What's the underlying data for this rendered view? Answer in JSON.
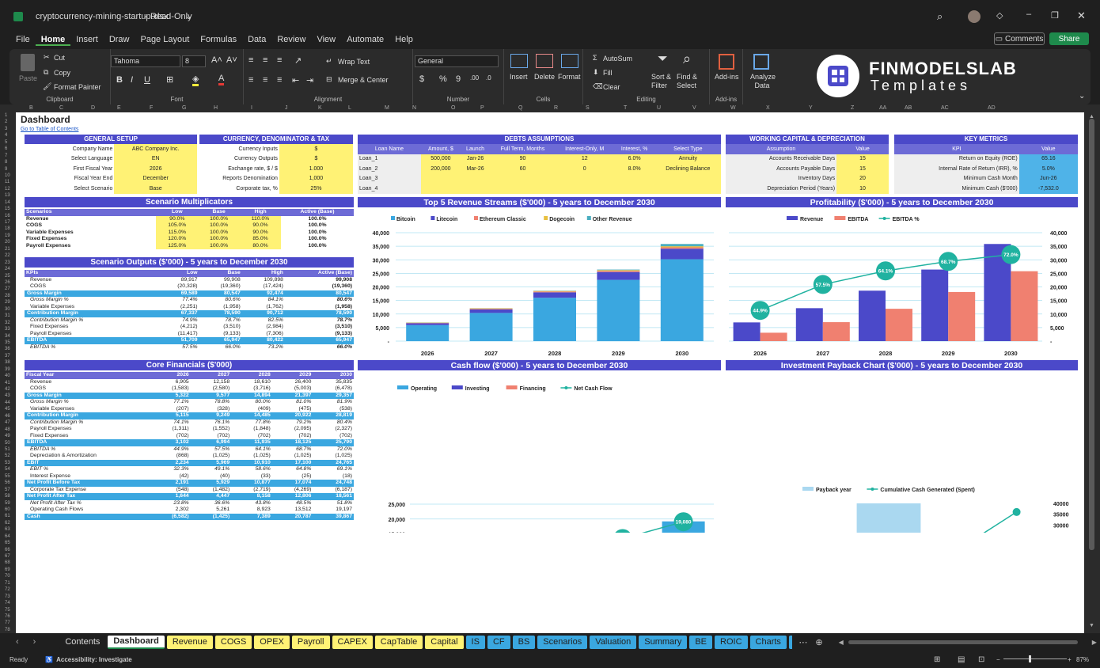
{
  "window": {
    "file_name": "cryptocurrency-mining-startup.xlsx",
    "mode": "Read-Only"
  },
  "menu": [
    "File",
    "Home",
    "Insert",
    "Draw",
    "Page Layout",
    "Formulas",
    "Data",
    "Review",
    "View",
    "Automate",
    "Help"
  ],
  "top_buttons": {
    "comments": "Comments",
    "share": "Share"
  },
  "ribbon": {
    "paste": "Paste",
    "cut": "Cut",
    "copy": "Copy",
    "format_painter": "Format Painter",
    "clipboard": "Clipboard",
    "font_name": "Tahoma",
    "font_size": "8",
    "font": "Font",
    "wrap_text": "Wrap Text",
    "merge_center": "Merge & Center",
    "alignment": "Alignment",
    "number_format": "General",
    "number": "Number",
    "insert": "Insert",
    "delete": "Delete",
    "format": "Format",
    "cells": "Cells",
    "autosum": "AutoSum",
    "fill": "Fill",
    "clear": "Clear",
    "sort_filter": "Sort & Filter",
    "find_select": "Find & Select",
    "editing": "Editing",
    "addins": "Add-ins",
    "addins_group": "Add-ins",
    "analyze": "Analyze Data",
    "brand_main": "FINMODELSLAB",
    "brand_sub": "Templates"
  },
  "columns": [
    "B",
    "C",
    "D",
    "E",
    "F",
    "G",
    "H",
    "I",
    "J",
    "K",
    "L",
    "M",
    "N",
    "O",
    "P",
    "Q",
    "R",
    "S",
    "T",
    "U",
    "V",
    "W",
    "X",
    "Y",
    "Z",
    "AA",
    "AB",
    "AC",
    "AD"
  ],
  "dashboard": {
    "title": "Dashboard",
    "toc_link": "Go to Table of Contents"
  },
  "general_setup": {
    "header": "GENERAL SETUP",
    "rows": [
      [
        "Company Name",
        "ABC Company Inc."
      ],
      [
        "Select Language",
        "EN"
      ],
      [
        "First Fiscal Year",
        "2026"
      ],
      [
        "Fiscal Year End",
        "December"
      ],
      [
        "Select Scenario",
        "Base"
      ]
    ]
  },
  "currency": {
    "header": "CURRENCY, DENOMINATOR & TAX",
    "rows": [
      [
        "Currency Inputs",
        "$"
      ],
      [
        "Currency Outputs",
        "$"
      ],
      [
        "Exchange rate, $ / $",
        "1.000"
      ],
      [
        "Reports Denomination",
        "1,000"
      ],
      [
        "Corporate tax, %",
        "25%"
      ]
    ]
  },
  "debts": {
    "header": "DEBTS ASSUMPTIONS",
    "cols": [
      "Loan Name",
      "Amount, $",
      "Launch",
      "Full Term, Months",
      "Interest-Only, M",
      "Interest, %",
      "Select Type"
    ],
    "rows": [
      [
        "Loan_1",
        "500,000",
        "Jan-26",
        "90",
        "12",
        "6.0%",
        "Annuity"
      ],
      [
        "Loan_2",
        "200,000",
        "Mar-26",
        "60",
        "0",
        "8.0%",
        "Declining Balance"
      ],
      [
        "Loan_3",
        "",
        "",
        "",
        "",
        "",
        ""
      ],
      [
        "Loan_4",
        "",
        "",
        "",
        "",
        "",
        ""
      ]
    ]
  },
  "working_capital": {
    "header": "WORKING CAPITAL & DEPRECIATION",
    "cols": [
      "Assumption",
      "Value"
    ],
    "rows": [
      [
        "Accounts Receivable Days",
        "15"
      ],
      [
        "Accounts Payable Days",
        "15"
      ],
      [
        "Inventory Days",
        "20"
      ],
      [
        "Depreciation Period (Years)",
        "10"
      ]
    ]
  },
  "key_metrics": {
    "header": "KEY METRICS",
    "cols": [
      "KPI",
      "Value"
    ],
    "rows": [
      [
        "Return on Equity (ROE)",
        "65.16"
      ],
      [
        "Internal Rate of Return (IRR), %",
        "5.0%"
      ],
      [
        "Minimum Cash Month",
        "Jun-26"
      ],
      [
        "Minimum Cash ($'000)",
        "-7,532.0"
      ]
    ]
  },
  "scenario_mult": {
    "header": "Scenario Multiplicators",
    "cols": [
      "Scenarios",
      "Low",
      "Base",
      "High",
      "Active (Base)"
    ],
    "rows": [
      [
        "Revenue",
        "90.0%",
        "100.0%",
        "110.0%",
        "100.0%"
      ],
      [
        "COGS",
        "105.0%",
        "100.0%",
        "90.0%",
        "100.0%"
      ],
      [
        "Variable Expenses",
        "115.0%",
        "100.0%",
        "90.0%",
        "100.0%"
      ],
      [
        "Fixed Expenses",
        "120.0%",
        "100.0%",
        "85.0%",
        "100.0%"
      ],
      [
        "Payroll Expenses",
        "125.0%",
        "100.0%",
        "80.0%",
        "100.0%"
      ]
    ]
  },
  "scenario_out": {
    "header": "Scenario Outputs ($'000) - 5 years to December 2030",
    "cols": [
      "KPIs",
      "Low",
      "Base",
      "High",
      "Active (Base)"
    ],
    "rows": [
      [
        "Revenue",
        "89,917",
        "99,908",
        "109,898",
        "99,908",
        "n"
      ],
      [
        "COGS",
        "(20,328)",
        "(19,360)",
        "(17,424)",
        "(19,360)",
        "n"
      ],
      [
        "Gross Margin",
        "69,589",
        "80,547",
        "92,474",
        "80,547",
        "h"
      ],
      [
        "Gross Margin %",
        "77.4%",
        "80.6%",
        "84.1%",
        "80.6%",
        "i"
      ],
      [
        "Variable Expenses",
        "(2,251)",
        "(1,958)",
        "(1,762)",
        "(1,958)",
        "n"
      ],
      [
        "Contribution Margin",
        "67,337",
        "78,590",
        "90,712",
        "78,590",
        "h"
      ],
      [
        "Contribution Margin %",
        "74.9%",
        "78.7%",
        "82.5%",
        "78.7%",
        "i"
      ],
      [
        "Fixed Expenses",
        "(4,212)",
        "(3,510)",
        "(2,984)",
        "(3,510)",
        "n"
      ],
      [
        "Payroll Expenses",
        "(11,417)",
        "(9,133)",
        "(7,306)",
        "(9,133)",
        "n"
      ],
      [
        "EBITDA",
        "51,709",
        "65,947",
        "80,422",
        "65,947",
        "h"
      ],
      [
        "EBITDA %",
        "57.5%",
        "66.0%",
        "73.2%",
        "66.0%",
        "i"
      ]
    ]
  },
  "core": {
    "header": "Core Financials ($'000)",
    "cols": [
      "Fiscal Year",
      "2026",
      "2027",
      "2028",
      "2029",
      "2030"
    ],
    "rows": [
      [
        "Revenue",
        "6,905",
        "12,158",
        "18,610",
        "26,400",
        "35,835",
        "n"
      ],
      [
        "COGS",
        "(1,583)",
        "(2,580)",
        "(3,716)",
        "(5,003)",
        "(6,478)",
        "n"
      ],
      [
        "Gross Margin",
        "5,322",
        "9,577",
        "14,894",
        "21,397",
        "29,357",
        "h"
      ],
      [
        "Gross Margin %",
        "77.1%",
        "78.8%",
        "80.0%",
        "81.0%",
        "81.9%",
        "i"
      ],
      [
        "Variable Expenses",
        "(207)",
        "(328)",
        "(409)",
        "(475)",
        "(538)",
        "n"
      ],
      [
        "Contribution Margin",
        "5,115",
        "9,249",
        "14,485",
        "20,922",
        "28,819",
        "h"
      ],
      [
        "Contribution Margin %",
        "74.1%",
        "76.1%",
        "77.8%",
        "79.2%",
        "80.4%",
        "i"
      ],
      [
        "Payroll Expenses",
        "(1,311)",
        "(1,552)",
        "(1,848)",
        "(2,095)",
        "(2,327)",
        "n"
      ],
      [
        "Fixed Expenses",
        "(702)",
        "(702)",
        "(702)",
        "(702)",
        "(702)",
        "n"
      ],
      [
        "EBITDA",
        "3,102",
        "6,994",
        "11,935",
        "18,125",
        "25,790",
        "h"
      ],
      [
        "EBITDA %",
        "44.9%",
        "57.5%",
        "64.1%",
        "68.7%",
        "72.0%",
        "i"
      ],
      [
        "Depreciation & Amortization",
        "(868)",
        "(1,025)",
        "(1,025)",
        "(1,025)",
        "(1,025)",
        "n"
      ],
      [
        "EBIT",
        "2,234",
        "5,969",
        "10,910",
        "17,100",
        "24,765",
        "h"
      ],
      [
        "EBIT %",
        "32.3%",
        "49.1%",
        "58.6%",
        "64.8%",
        "69.1%",
        "i"
      ],
      [
        "Interest Expense",
        "(42)",
        "(40)",
        "(33)",
        "(25)",
        "(18)",
        "n"
      ],
      [
        "Net Profit Before Tax",
        "2,191",
        "5,929",
        "10,877",
        "17,074",
        "24,748",
        "h"
      ],
      [
        "Corporate Tax Expense",
        "(548)",
        "(1,482)",
        "(2,719)",
        "(4,269)",
        "(6,187)",
        "n"
      ],
      [
        "Net Profit After Tax",
        "1,644",
        "4,447",
        "8,158",
        "12,806",
        "18,561",
        "h"
      ],
      [
        "Net Profit After Tax %",
        "23.8%",
        "36.6%",
        "43.8%",
        "48.5%",
        "51.8%",
        "i"
      ],
      [
        "Operating Cash Flows",
        "2,302",
        "5,261",
        "8,923",
        "13,512",
        "19,197",
        "n"
      ],
      [
        "Cash",
        "(6,582)",
        "(1,425)",
        "7,389",
        "20,787",
        "39,867",
        "h"
      ]
    ]
  },
  "chart_data": [
    {
      "type": "bar",
      "title": "Top 5 Revenue Streams ($'000) - 5 years to December 2030",
      "categories": [
        "2026",
        "2027",
        "2028",
        "2029",
        "2030"
      ],
      "stacked": true,
      "series": [
        {
          "name": "Bitcoin",
          "color": "#3aa7e0",
          "values": [
            5900,
            10400,
            16000,
            22600,
            30200
          ]
        },
        {
          "name": "Litecoin",
          "color": "#4b49c9",
          "values": [
            700,
            1300,
            2000,
            2900,
            3900
          ]
        },
        {
          "name": "Ethereum Classic",
          "color": "#f08070",
          "values": [
            150,
            250,
            300,
            400,
            500
          ]
        },
        {
          "name": "Dogecoin",
          "color": "#e8c040",
          "values": [
            100,
            150,
            200,
            300,
            400
          ]
        },
        {
          "name": "Other Revenue",
          "color": "#4aaec0",
          "values": [
            55,
            58,
            110,
            200,
            835
          ]
        }
      ],
      "ylim": [
        0,
        40000
      ],
      "yticks": [
        "-",
        "5,000",
        "10,000",
        "15,000",
        "20,000",
        "25,000",
        "30,000",
        "35,000",
        "40,000"
      ]
    },
    {
      "type": "bar",
      "title": "Profitability ($'000) - 5 years to December 2030",
      "categories": [
        "2026",
        "2027",
        "2028",
        "2029",
        "2030"
      ],
      "series": [
        {
          "name": "Revenue",
          "color": "#4b49c9",
          "values": [
            6905,
            12158,
            18610,
            26400,
            35835
          ]
        },
        {
          "name": "EBITDA",
          "color": "#f08070",
          "values": [
            3102,
            6994,
            11935,
            18125,
            25790
          ]
        },
        {
          "name": "EBITDA %",
          "color": "#20b2a0",
          "values": [
            44.9,
            57.5,
            64.1,
            68.7,
            72.0
          ],
          "labels": [
            "44.9%",
            "57.5%",
            "64.1%",
            "68.7%",
            "72.0%"
          ]
        }
      ],
      "ylim": [
        0,
        40000
      ],
      "yticks": [
        "-",
        "5,000",
        "10,000",
        "15,000",
        "20,000",
        "25,000",
        "30,000",
        "35,000",
        "40,000"
      ]
    },
    {
      "type": "bar",
      "title": "Cash flow ($'000) - 5 years to December 2030",
      "categories": [
        "2026",
        "2027",
        "2028",
        "2029",
        "2030"
      ],
      "series": [
        {
          "name": "Operating",
          "color": "#3aa7e0",
          "values": [
            2302,
            5261,
            8923,
            13512,
            19197
          ]
        },
        {
          "name": "Investing",
          "color": "#4b49c9",
          "values": [
            -10200,
            0,
            0,
            0,
            0
          ]
        },
        {
          "name": "Financing",
          "color": "#f08070",
          "values": [
            1300,
            0,
            0,
            0,
            0
          ]
        },
        {
          "name": "Net Cash Flow",
          "color": "#20b2a0",
          "values": [
            -6582,
            5156,
            8814,
            13399,
            19080
          ],
          "labels": [
            "-6,582",
            "5,156",
            "8,814",
            "13,399",
            "19,080"
          ]
        }
      ],
      "ylim": [
        -15000,
        25000
      ],
      "yticks": [
        "(15,000)",
        "(10,000)",
        "(5,000)",
        "-",
        "5,000",
        "10,000",
        "15,000",
        "20,000",
        "25,000"
      ]
    },
    {
      "type": "bar",
      "title": "Investment Payback Chart ($'000) - 5 years to December 2030",
      "categories": [
        "2026",
        "2027",
        "2028",
        "2029",
        "2030"
      ],
      "series": [
        {
          "name": "Payback year",
          "color": "#aad8f0",
          "values": [
            0,
            0,
            1,
            0,
            0
          ]
        },
        {
          "name": "Cumulative Cash Generated (Spent)",
          "color": "#20b2a0",
          "values": [
            -10000,
            -7500,
            0,
            17000,
            36000
          ]
        }
      ],
      "ylim": [
        -15000,
        40000
      ],
      "yticks": [
        "(15,000)",
        "(10,000)",
        "(5,000)",
        "-",
        "5000",
        "10000",
        "15000",
        "20000",
        "25000",
        "30000",
        "35000",
        "40000"
      ]
    }
  ],
  "tabs": [
    {
      "label": "Contents",
      "bg": "#1f1f1f",
      "fg": "#ddd"
    },
    {
      "label": "Dashboard",
      "bg": "#ffffff",
      "fg": "#222",
      "active": true
    },
    {
      "label": "Revenue",
      "bg": "#fff275",
      "fg": "#222"
    },
    {
      "label": "COGS",
      "bg": "#fff275",
      "fg": "#222"
    },
    {
      "label": "OPEX",
      "bg": "#fff275",
      "fg": "#222"
    },
    {
      "label": "Payroll",
      "bg": "#fff275",
      "fg": "#222"
    },
    {
      "label": "CAPEX",
      "bg": "#fff275",
      "fg": "#222"
    },
    {
      "label": "CapTable",
      "bg": "#fff275",
      "fg": "#222"
    },
    {
      "label": "Capital",
      "bg": "#fff275",
      "fg": "#222"
    },
    {
      "label": "IS",
      "bg": "#3aa7e0",
      "fg": "#222"
    },
    {
      "label": "CF",
      "bg": "#3aa7e0",
      "fg": "#222"
    },
    {
      "label": "BS",
      "bg": "#3aa7e0",
      "fg": "#222"
    },
    {
      "label": "Scenarios",
      "bg": "#3aa7e0",
      "fg": "#222"
    },
    {
      "label": "Valuation",
      "bg": "#3aa7e0",
      "fg": "#222"
    },
    {
      "label": "Summary",
      "bg": "#3aa7e0",
      "fg": "#222"
    },
    {
      "label": "BE",
      "bg": "#3aa7e0",
      "fg": "#222"
    },
    {
      "label": "ROIC",
      "bg": "#3aa7e0",
      "fg": "#222"
    },
    {
      "label": "Charts",
      "bg": "#3aa7e0",
      "fg": "#222"
    },
    {
      "label": "KPIs",
      "bg": "#3aa7e0",
      "fg": "#222"
    }
  ],
  "status": {
    "ready": "Ready",
    "accessibility": "Accessibility: Investigate",
    "zoom": "87%"
  }
}
